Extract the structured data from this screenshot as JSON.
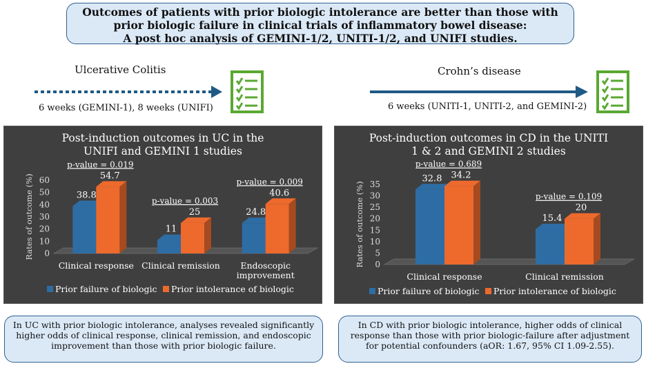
{
  "header": {
    "title_line1": "Outcomes of patients with prior biologic intolerance are better than those with",
    "title_line2": "prior biologic failure in clinical trials of inflammatory bowel disease:",
    "title_line3": "A post hoc analysis of GEMINI-1/2, UNITI-1/2, and UNIFI studies."
  },
  "uc": {
    "label": "Ulcerative Colitis",
    "timeline": "6 weeks (GEMINI-1), 8 weeks (UNIFI)",
    "summary": "In UC with prior biologic intolerance, analyses revealed significantly higher odds of clinical response, clinical remission, and endoscopic improvement than those with prior biologic failure."
  },
  "cd": {
    "label": "Crohn’s disease",
    "timeline": "6 weeks (UNITI-1, UNITI-2, and GEMINI-2)",
    "summary": "In CD with prior biologic intolerance, higher odds of clinical response than those with prior biologic-failure after adjustment for potential confounders (aOR: 1.67, 95% CI 1.09-2.55)."
  },
  "colors": {
    "failure": "#2e6da4",
    "intolerance": "#ed6a2c",
    "accent_green": "#5aa832",
    "arrow": "#1f5a85"
  },
  "chart_data": [
    {
      "type": "bar",
      "title_line1": "Post-induction outcomes in UC in the",
      "title_line2": "UNIFI and GEMINI 1 studies",
      "ylabel": "Rates of outcome (%)",
      "ylim": [
        0,
        60
      ],
      "yticks": [
        "0",
        "10",
        "20",
        "30",
        "40",
        "50",
        "60"
      ],
      "categories": [
        "Clinical response",
        "Clinical remission",
        "Endoscopic improvement"
      ],
      "category_lines": [
        [
          "Clinical response"
        ],
        [
          "Clinical remission"
        ],
        [
          "Endoscopic",
          "improvement"
        ]
      ],
      "series": [
        {
          "name": "Prior failure of biologic",
          "values": [
            38.8,
            11,
            24.8
          ],
          "labels": [
            "38.8",
            "11",
            "24.8"
          ]
        },
        {
          "name": "Prior intolerance of biologic",
          "values": [
            54.7,
            25,
            40.6
          ],
          "labels": [
            "54.7",
            "25",
            "40.6"
          ]
        }
      ],
      "pvalues": [
        "p-value = 0.019",
        "p-value = 0.003",
        "p-value = 0.009"
      ]
    },
    {
      "type": "bar",
      "title_line1": "Post-induction outcomes in CD in the UNITI",
      "title_line2": "1 & 2 and GEMINI 2 studies",
      "ylabel": "Rates of outcome (%)",
      "ylim": [
        0,
        35
      ],
      "yticks": [
        "0",
        "5",
        "10",
        "15",
        "20",
        "25",
        "30",
        "35"
      ],
      "categories": [
        "Clinical response",
        "Clinical remission"
      ],
      "category_lines": [
        [
          "Clinical response"
        ],
        [
          "Clinical remission"
        ]
      ],
      "series": [
        {
          "name": "Prior failure of biologic",
          "values": [
            32.8,
            15.4
          ],
          "labels": [
            "32.8",
            "15.4"
          ]
        },
        {
          "name": "Prior intolerance of biologic",
          "values": [
            34.2,
            20
          ],
          "labels": [
            "34.2",
            "20"
          ]
        }
      ],
      "pvalues": [
        "p-value = 0.689",
        "p-value = 0.109"
      ]
    }
  ]
}
